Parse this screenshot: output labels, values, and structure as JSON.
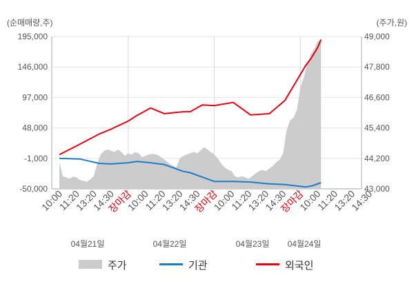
{
  "chart_data": {
    "type": "line",
    "left_axis_unit": "(순매매량,주)",
    "right_axis_unit": "(주가,원)",
    "left_ticks": [
      "195,000",
      "146,000",
      "97,000",
      "48,000",
      "-1,000",
      "-50,000"
    ],
    "left_tick_values": [
      195000,
      146000,
      97000,
      48000,
      -1000,
      -50000
    ],
    "right_ticks": [
      "49,000",
      "47,800",
      "46,600",
      "45,400",
      "44,200",
      "43,000"
    ],
    "right_tick_values": [
      49000,
      47800,
      46600,
      45400,
      44200,
      43000
    ],
    "ylim_left": [
      -50000,
      195000
    ],
    "ylim_right": [
      43000,
      49000
    ],
    "x_tick_labels": [
      "10:00",
      "11:20",
      "13:20",
      "14:30",
      "장마감",
      "10:00",
      "11:20",
      "13:20",
      "14:30",
      "장마감",
      "10:00",
      "11:20",
      "13:20",
      "14:30",
      "장마감",
      "10:00",
      "11:20",
      "13:20",
      "14:30"
    ],
    "x_close_label": "장마감",
    "dates": [
      "04월21일",
      "04월22일",
      "04월23일",
      "04월24일"
    ],
    "legend": [
      {
        "name": "주가",
        "color": "#cccccc",
        "kind": "area"
      },
      {
        "name": "기관",
        "color": "#1a7dc4",
        "kind": "line"
      },
      {
        "name": "외국인",
        "color": "#e60012",
        "kind": "line"
      }
    ],
    "series": [
      {
        "name": "기관",
        "color": "#1a7dc4",
        "x": [
          0,
          1.2,
          2.3,
          3.0,
          4.0,
          4.5,
          5.3,
          6.1,
          7.2,
          7.6,
          8.3,
          9.0,
          10.1,
          11.1,
          12.2,
          13.1,
          14.3,
          14.7,
          15.2
        ],
        "values": [
          -1000,
          -2000,
          -9000,
          -10000,
          -8000,
          -6000,
          -8000,
          -11000,
          -22000,
          -24000,
          -31000,
          -38000,
          -38000,
          -39000,
          -42000,
          -43000,
          -47000,
          -45000,
          -40000
        ]
      },
      {
        "name": "외국인",
        "color": "#e60012",
        "x": [
          0,
          1.2,
          2.3,
          3.0,
          4.0,
          4.5,
          5.3,
          6.1,
          7.2,
          7.6,
          8.3,
          9.0,
          10.1,
          11.1,
          12.2,
          13.1,
          14.3,
          14.6,
          15.0,
          15.2
        ],
        "values": [
          5000,
          22000,
          38000,
          46000,
          59000,
          68000,
          80000,
          71000,
          74000,
          74000,
          85000,
          84000,
          89000,
          69000,
          71000,
          92000,
          148000,
          159000,
          177000,
          190000
        ]
      },
      {
        "name": "주가",
        "color": "#cccccc",
        "x": [
          0,
          0.2,
          0.4,
          0.6,
          0.8,
          1.0,
          1.2,
          1.4,
          1.6,
          1.8,
          2.0,
          2.2,
          2.4,
          2.6,
          2.8,
          3.0,
          3.2,
          3.4,
          3.6,
          3.8,
          4.0,
          4.2,
          4.4,
          4.6,
          4.8,
          5.0,
          5.2,
          5.4,
          5.6,
          5.8,
          6.0,
          6.2,
          6.4,
          6.6,
          6.8,
          7.0,
          7.2,
          7.4,
          7.6,
          7.8,
          8.0,
          8.2,
          8.4,
          8.6,
          8.8,
          9.0,
          9.2,
          9.4,
          9.6,
          9.8,
          10.0,
          10.2,
          10.4,
          10.6,
          10.8,
          11.0,
          11.2,
          11.4,
          11.6,
          11.8,
          12.0,
          12.2,
          12.4,
          12.6,
          12.8,
          13.0,
          13.2,
          13.4,
          13.6,
          13.8,
          14.0,
          14.2,
          14.4,
          14.6,
          14.8,
          15.0,
          15.2
        ],
        "values": [
          44050,
          43500,
          43450,
          43400,
          43480,
          43450,
          43350,
          43320,
          43280,
          43380,
          43500,
          44000,
          44350,
          44500,
          44550,
          44500,
          44450,
          44550,
          44450,
          44300,
          44400,
          44350,
          44450,
          44400,
          44250,
          44300,
          44350,
          44380,
          44360,
          44300,
          44200,
          44100,
          44000,
          43900,
          43850,
          44200,
          44300,
          44350,
          44400,
          44450,
          44400,
          44500,
          44650,
          44550,
          44450,
          44350,
          44200,
          44000,
          43850,
          43750,
          43700,
          43500,
          43450,
          43500,
          43450,
          43400,
          43500,
          43600,
          43700,
          43750,
          43700,
          43800,
          43900,
          44050,
          44150,
          44400,
          45300,
          45700,
          45800,
          46100,
          47000,
          47400,
          47900,
          48300,
          48500,
          48800,
          48900
        ]
      }
    ]
  }
}
